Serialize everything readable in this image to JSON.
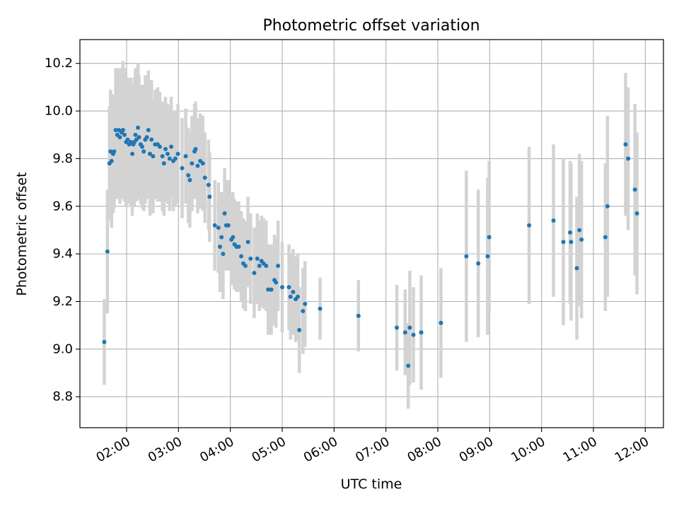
{
  "chart_data": {
    "type": "scatter",
    "title": "Photometric offset variation",
    "xlabel": "UTC time",
    "ylabel": "Photometric offset",
    "x_unit": "UTC hours",
    "xlim": [
      1.1,
      12.35
    ],
    "ylim": [
      8.67,
      10.3
    ],
    "x_ticks": [
      {
        "value": 2,
        "label": "02:00"
      },
      {
        "value": 3,
        "label": "03:00"
      },
      {
        "value": 4,
        "label": "04:00"
      },
      {
        "value": 5,
        "label": "05:00"
      },
      {
        "value": 6,
        "label": "06:00"
      },
      {
        "value": 7,
        "label": "07:00"
      },
      {
        "value": 8,
        "label": "08:00"
      },
      {
        "value": 9,
        "label": "09:00"
      },
      {
        "value": 10,
        "label": "10:00"
      },
      {
        "value": 11,
        "label": "11:00"
      },
      {
        "value": 12,
        "label": "12:00"
      }
    ],
    "y_ticks": [
      {
        "value": 8.8,
        "label": "8.8"
      },
      {
        "value": 9.0,
        "label": "9.0"
      },
      {
        "value": 9.2,
        "label": "9.2"
      },
      {
        "value": 9.4,
        "label": "9.4"
      },
      {
        "value": 9.6,
        "label": "9.6"
      },
      {
        "value": 9.8,
        "label": "9.8"
      },
      {
        "value": 10.0,
        "label": "10.0"
      },
      {
        "value": 10.2,
        "label": "10.2"
      }
    ],
    "grid": true,
    "colors": {
      "points": "#1f77b4",
      "errorbars": "#d3d3d3",
      "grid": "#b0b0b0"
    },
    "points": [
      [
        1.57,
        9.03,
        0.18
      ],
      [
        1.63,
        9.41,
        0.26
      ],
      [
        1.67,
        9.78,
        0.24
      ],
      [
        1.69,
        9.83,
        0.26
      ],
      [
        1.71,
        9.79,
        0.28
      ],
      [
        1.74,
        9.82,
        0.25
      ],
      [
        1.76,
        9.83,
        0.24
      ],
      [
        1.79,
        9.92,
        0.26
      ],
      [
        1.82,
        9.9,
        0.27
      ],
      [
        1.85,
        9.92,
        0.26
      ],
      [
        1.87,
        9.89,
        0.28
      ],
      [
        1.9,
        9.91,
        0.27
      ],
      [
        1.93,
        9.92,
        0.29
      ],
      [
        1.96,
        9.9,
        0.28
      ],
      [
        1.99,
        9.87,
        0.27
      ],
      [
        2.02,
        9.88,
        0.26
      ],
      [
        2.05,
        9.86,
        0.25
      ],
      [
        2.08,
        9.87,
        0.27
      ],
      [
        2.11,
        9.82,
        0.26
      ],
      [
        2.13,
        9.86,
        0.25
      ],
      [
        2.15,
        9.87,
        0.27
      ],
      [
        2.17,
        9.9,
        0.28
      ],
      [
        2.19,
        9.88,
        0.26
      ],
      [
        2.22,
        9.93,
        0.27
      ],
      [
        2.24,
        9.89,
        0.26
      ],
      [
        2.27,
        9.86,
        0.25
      ],
      [
        2.3,
        9.85,
        0.26
      ],
      [
        2.33,
        9.83,
        0.25
      ],
      [
        2.36,
        9.88,
        0.27
      ],
      [
        2.39,
        9.89,
        0.26
      ],
      [
        2.42,
        9.92,
        0.25
      ],
      [
        2.45,
        9.82,
        0.26
      ],
      [
        2.48,
        9.88,
        0.25
      ],
      [
        2.51,
        9.81,
        0.24
      ],
      [
        2.55,
        9.86,
        0.23
      ],
      [
        2.6,
        9.86,
        0.24
      ],
      [
        2.64,
        9.85,
        0.23
      ],
      [
        2.69,
        9.81,
        0.23
      ],
      [
        2.72,
        9.78,
        0.22
      ],
      [
        2.75,
        9.84,
        0.22
      ],
      [
        2.79,
        9.82,
        0.21
      ],
      [
        2.83,
        9.8,
        0.22
      ],
      [
        2.86,
        9.85,
        0.21
      ],
      [
        2.9,
        9.79,
        0.21
      ],
      [
        2.94,
        9.8,
        0.2
      ],
      [
        2.99,
        9.82,
        0.21
      ],
      [
        3.07,
        9.76,
        0.21
      ],
      [
        3.14,
        9.81,
        0.2
      ],
      [
        3.19,
        9.73,
        0.2
      ],
      [
        3.22,
        9.71,
        0.2
      ],
      [
        3.26,
        9.78,
        0.2
      ],
      [
        3.31,
        9.83,
        0.2
      ],
      [
        3.33,
        9.84,
        0.2
      ],
      [
        3.37,
        9.77,
        0.2
      ],
      [
        3.42,
        9.79,
        0.2
      ],
      [
        3.47,
        9.78,
        0.2
      ],
      [
        3.51,
        9.72,
        0.19
      ],
      [
        3.58,
        9.69,
        0.19
      ],
      [
        3.6,
        9.64,
        0.19
      ],
      [
        3.7,
        9.52,
        0.19
      ],
      [
        3.77,
        9.51,
        0.19
      ],
      [
        3.8,
        9.43,
        0.19
      ],
      [
        3.83,
        9.47,
        0.19
      ],
      [
        3.86,
        9.4,
        0.19
      ],
      [
        3.89,
        9.57,
        0.19
      ],
      [
        3.92,
        9.52,
        0.19
      ],
      [
        3.96,
        9.52,
        0.19
      ],
      [
        4.02,
        9.46,
        0.19
      ],
      [
        4.05,
        9.47,
        0.19
      ],
      [
        4.08,
        9.44,
        0.19
      ],
      [
        4.12,
        9.43,
        0.19
      ],
      [
        4.16,
        9.43,
        0.19
      ],
      [
        4.21,
        9.39,
        0.19
      ],
      [
        4.25,
        9.36,
        0.19
      ],
      [
        4.29,
        9.35,
        0.19
      ],
      [
        4.34,
        9.45,
        0.19
      ],
      [
        4.39,
        9.38,
        0.19
      ],
      [
        4.46,
        9.32,
        0.19
      ],
      [
        4.52,
        9.38,
        0.19
      ],
      [
        4.56,
        9.35,
        0.19
      ],
      [
        4.6,
        9.37,
        0.19
      ],
      [
        4.64,
        9.36,
        0.19
      ],
      [
        4.69,
        9.35,
        0.19
      ],
      [
        4.73,
        9.25,
        0.19
      ],
      [
        4.79,
        9.25,
        0.19
      ],
      [
        4.85,
        9.29,
        0.19
      ],
      [
        4.88,
        9.28,
        0.19
      ],
      [
        4.92,
        9.35,
        0.19
      ],
      [
        5.0,
        9.26,
        0.19
      ],
      [
        5.13,
        9.26,
        0.18
      ],
      [
        5.16,
        9.22,
        0.18
      ],
      [
        5.21,
        9.24,
        0.18
      ],
      [
        5.26,
        9.21,
        0.18
      ],
      [
        5.3,
        9.22,
        0.18
      ],
      [
        5.33,
        9.08,
        0.18
      ],
      [
        5.4,
        9.16,
        0.18
      ],
      [
        5.44,
        9.19,
        0.18
      ],
      [
        5.73,
        9.17,
        0.13
      ],
      [
        6.47,
        9.14,
        0.15
      ],
      [
        7.21,
        9.09,
        0.18
      ],
      [
        7.37,
        9.07,
        0.18
      ],
      [
        7.43,
        8.93,
        0.18
      ],
      [
        7.46,
        9.09,
        0.24
      ],
      [
        7.53,
        9.06,
        0.2
      ],
      [
        7.68,
        9.07,
        0.24
      ],
      [
        8.06,
        9.11,
        0.23
      ],
      [
        8.55,
        9.39,
        0.36
      ],
      [
        8.78,
        9.36,
        0.31
      ],
      [
        8.96,
        9.39,
        0.33
      ],
      [
        8.99,
        9.47,
        0.32
      ],
      [
        9.76,
        9.52,
        0.33
      ],
      [
        10.23,
        9.54,
        0.32
      ],
      [
        10.42,
        9.45,
        0.35
      ],
      [
        10.55,
        9.49,
        0.3
      ],
      [
        10.57,
        9.45,
        0.33
      ],
      [
        10.68,
        9.34,
        0.3
      ],
      [
        10.73,
        9.5,
        0.32
      ],
      [
        10.77,
        9.46,
        0.33
      ],
      [
        11.23,
        9.47,
        0.31
      ],
      [
        11.27,
        9.6,
        0.38
      ],
      [
        11.62,
        9.86,
        0.3
      ],
      [
        11.67,
        9.8,
        0.3
      ],
      [
        11.8,
        9.67,
        0.36
      ],
      [
        11.84,
        9.57,
        0.34
      ]
    ]
  }
}
